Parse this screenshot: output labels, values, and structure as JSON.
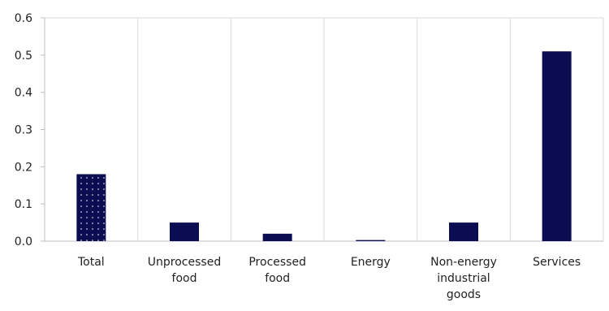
{
  "chart_data": {
    "type": "bar",
    "categories": [
      "Total",
      "Unprocessed food",
      "Processed food",
      "Energy",
      "Non-energy industrial goods",
      "Services"
    ],
    "values": [
      0.18,
      0.05,
      0.02,
      0.003,
      0.05,
      0.51
    ],
    "color": "#0b0c52",
    "bar_patterns": [
      "dots",
      null,
      null,
      null,
      null,
      null
    ],
    "ylim": [
      0,
      0.6
    ],
    "yticks": [
      {
        "value": 0,
        "label": "0.0"
      },
      0.1,
      0.2,
      0.3,
      0.4,
      0.5,
      0.6
    ],
    "grid": "vertical"
  }
}
